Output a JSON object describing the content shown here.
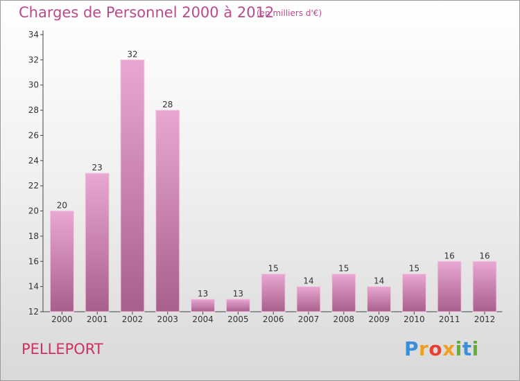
{
  "header": {
    "title": "Charges de Personnel 2000 à 2012",
    "subtitle": "(en milliers d'€)"
  },
  "footer": {
    "location": "PELLEPORT",
    "logo_letters": [
      "P",
      "r",
      "o",
      "x",
      "i",
      "t",
      "i"
    ]
  },
  "colors": {
    "title": "#b94a8c",
    "location": "#d03060",
    "bar_light": "#e8a8d2",
    "bar_dark": "#a85f8b"
  },
  "chart_data": {
    "type": "bar",
    "title": "Charges de Personnel 2000 à 2012",
    "subtitle": "(en milliers d'€)",
    "categories": [
      "2000",
      "2001",
      "2002",
      "2003",
      "2004",
      "2005",
      "2006",
      "2007",
      "2008",
      "2009",
      "2010",
      "2011",
      "2012"
    ],
    "values": [
      20,
      23,
      32,
      28,
      13,
      13,
      15,
      14,
      15,
      14,
      15,
      16,
      16
    ],
    "ylim": [
      12,
      34
    ],
    "yticks": [
      12,
      14,
      16,
      18,
      20,
      22,
      24,
      26,
      28,
      30,
      32,
      34
    ],
    "grid": false,
    "legend": "none"
  }
}
